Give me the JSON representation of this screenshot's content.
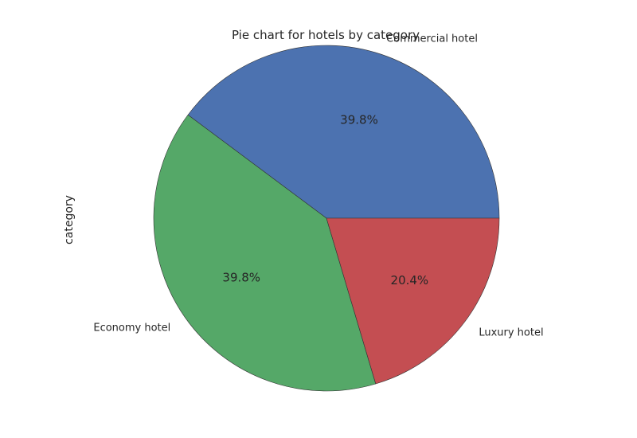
{
  "chart_data": {
    "type": "pie",
    "title": "Pie chart for hotels by category",
    "ylabel": "category",
    "xlabel": "",
    "slices": [
      {
        "label": "Commercial hotel",
        "percent": 39.8,
        "color": "#4C72B0"
      },
      {
        "label": "Economy hotel",
        "percent": 39.8,
        "color": "#55A868"
      },
      {
        "label": "Luxury hotel",
        "percent": 20.4,
        "color": "#C44E52"
      }
    ],
    "start_angle_deg": 0,
    "direction": "counterclockwise",
    "autopct": "%1.1f%%"
  }
}
